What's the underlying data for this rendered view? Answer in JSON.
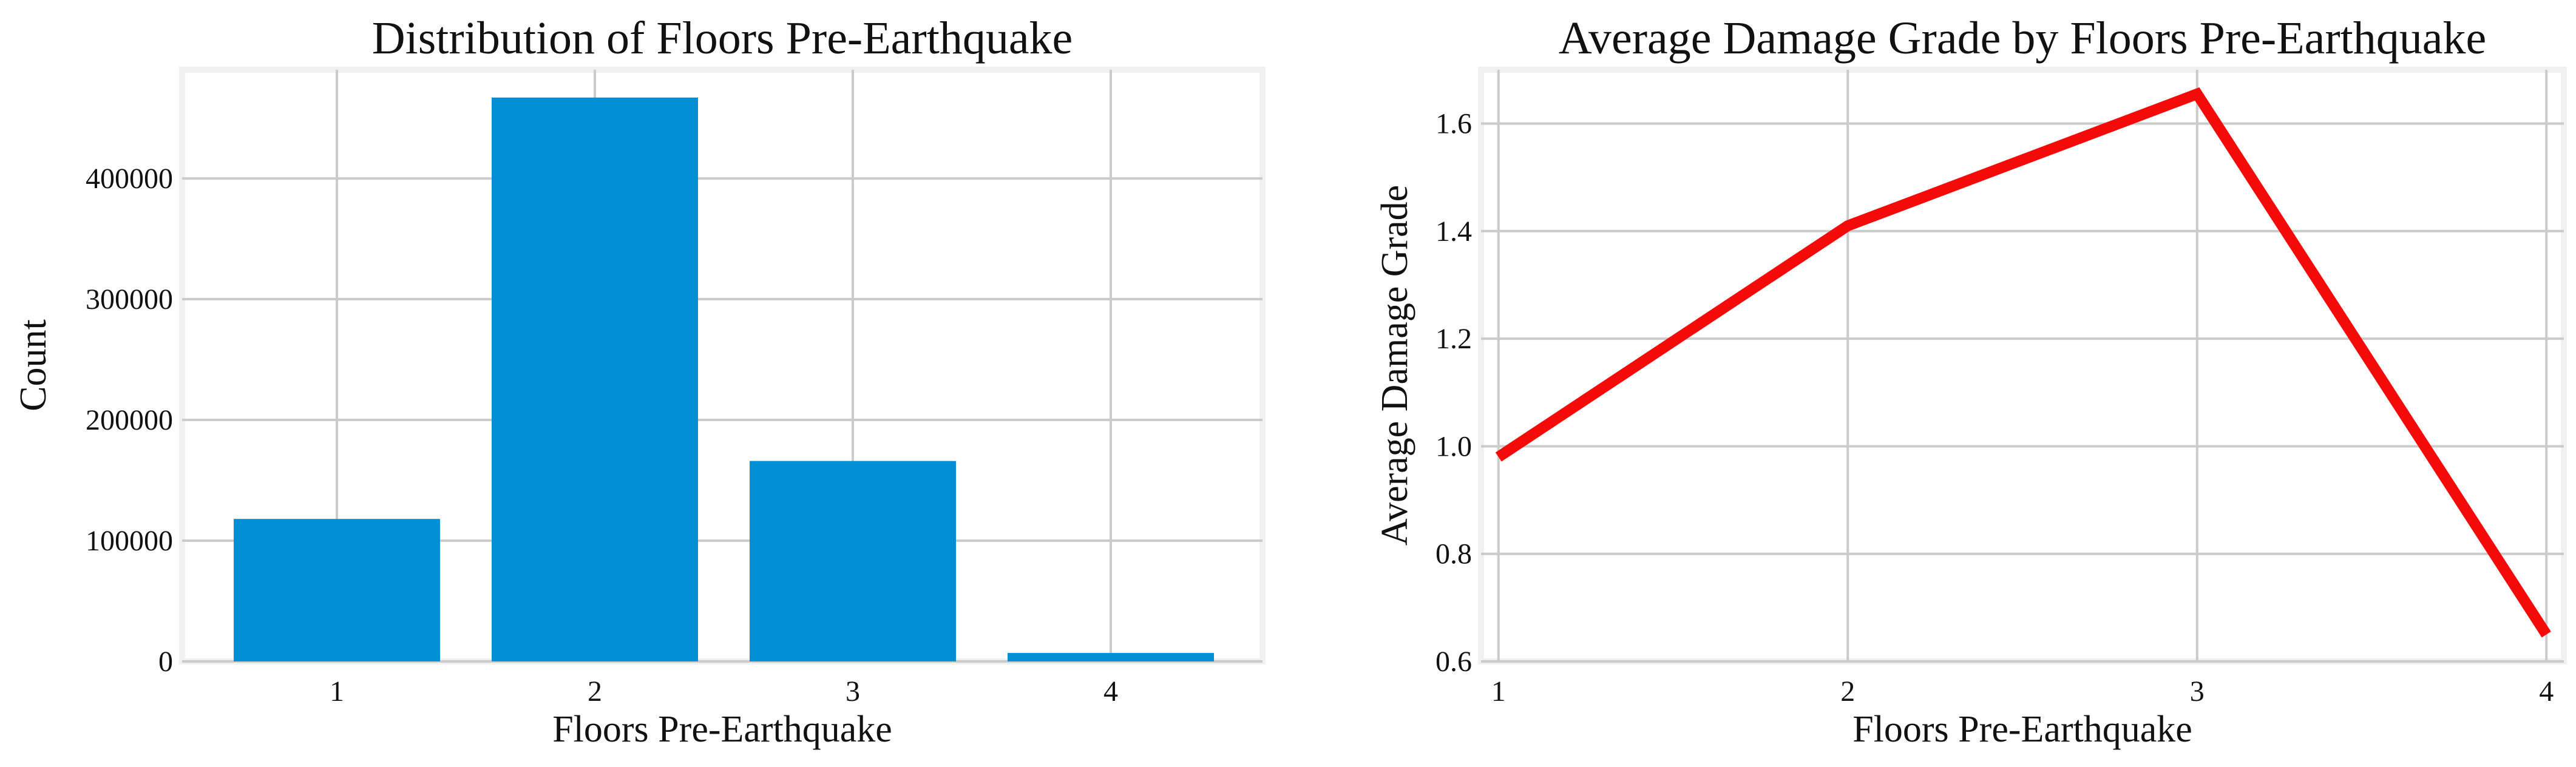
{
  "chart_data": [
    {
      "type": "bar",
      "title": "Distribution of Floors Pre-Earthquake",
      "xlabel": "Floors Pre-Earthquake",
      "ylabel": "Count",
      "categories": [
        "1",
        "2",
        "3",
        "4"
      ],
      "values": [
        118000,
        467000,
        166000,
        7000
      ],
      "ylim": [
        0,
        490000
      ],
      "yticks": [
        0,
        100000,
        200000,
        300000,
        400000
      ],
      "ytick_labels": [
        "0",
        "100000",
        "200000",
        "300000",
        "400000"
      ],
      "color": "#008fd5",
      "grid": true
    },
    {
      "type": "line",
      "title": "Average Damage Grade by Floors Pre-Earthquake",
      "xlabel": "Floors Pre-Earthquake",
      "ylabel": "Average Damage Grade",
      "x": [
        1,
        2,
        3,
        4
      ],
      "values": [
        0.98,
        1.41,
        1.655,
        0.65
      ],
      "xlim": [
        0.95,
        4.05
      ],
      "ylim": [
        0.6,
        1.7
      ],
      "xticks": [
        1,
        2,
        3,
        4
      ],
      "xtick_labels": [
        "1",
        "2",
        "3",
        "4"
      ],
      "yticks": [
        0.6,
        0.8,
        1.0,
        1.2,
        1.4,
        1.6
      ],
      "ytick_labels": [
        "0.6",
        "0.8",
        "1.0",
        "1.2",
        "1.4",
        "1.6"
      ],
      "color": "#f50a0a",
      "grid": true
    }
  ]
}
